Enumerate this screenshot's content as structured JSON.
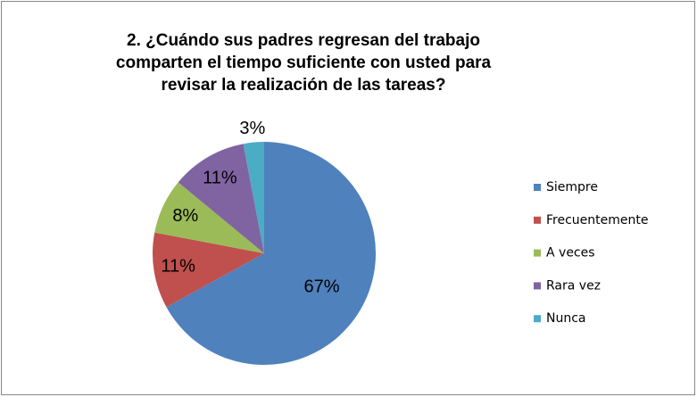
{
  "chart_data": {
    "type": "pie",
    "title": [
      "2. ¿Cuándo sus padres regresan del trabajo",
      "comparten el tiempo suficiente con usted para",
      "revisar la realización de las tareas?"
    ],
    "categories": [
      "Siempre",
      "Frecuentemente",
      "A veces",
      "Rara vez",
      "Nunca"
    ],
    "values": [
      67,
      11,
      8,
      11,
      3
    ],
    "value_labels": [
      "67%",
      "11%",
      "8%",
      "11%",
      "3%"
    ],
    "colors": [
      "#4f81bd",
      "#c0504d",
      "#9bbb59",
      "#8064a2",
      "#4bacc6"
    ],
    "legend": "right"
  }
}
